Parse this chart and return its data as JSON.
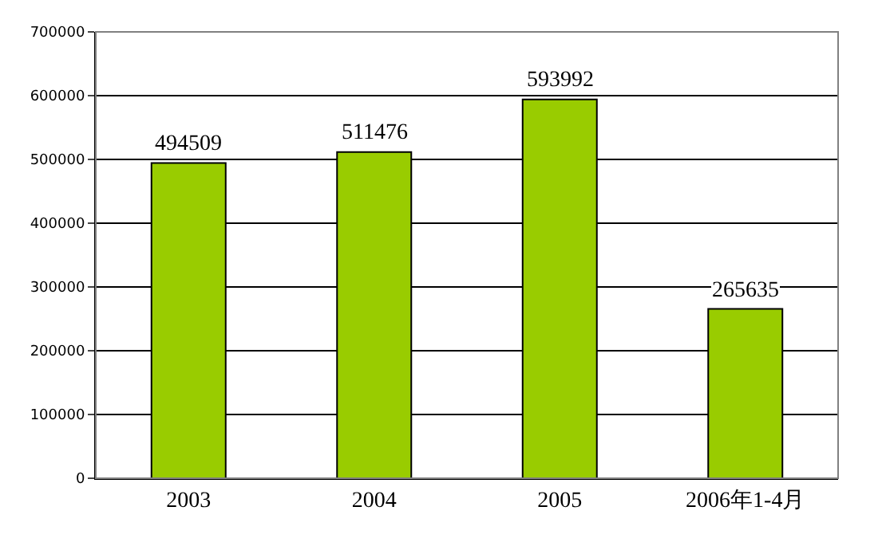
{
  "chart_data": {
    "type": "bar",
    "categories": [
      "2003",
      "2004",
      "2005",
      "2006年1-4月"
    ],
    "values": [
      494509,
      511476,
      593992,
      265635
    ],
    "color": "#99cc00",
    "ylim": [
      0,
      700000
    ],
    "yticks": [
      0,
      100000,
      200000,
      300000,
      400000,
      500000,
      600000,
      700000
    ],
    "grid": "y",
    "data_labels": true
  }
}
